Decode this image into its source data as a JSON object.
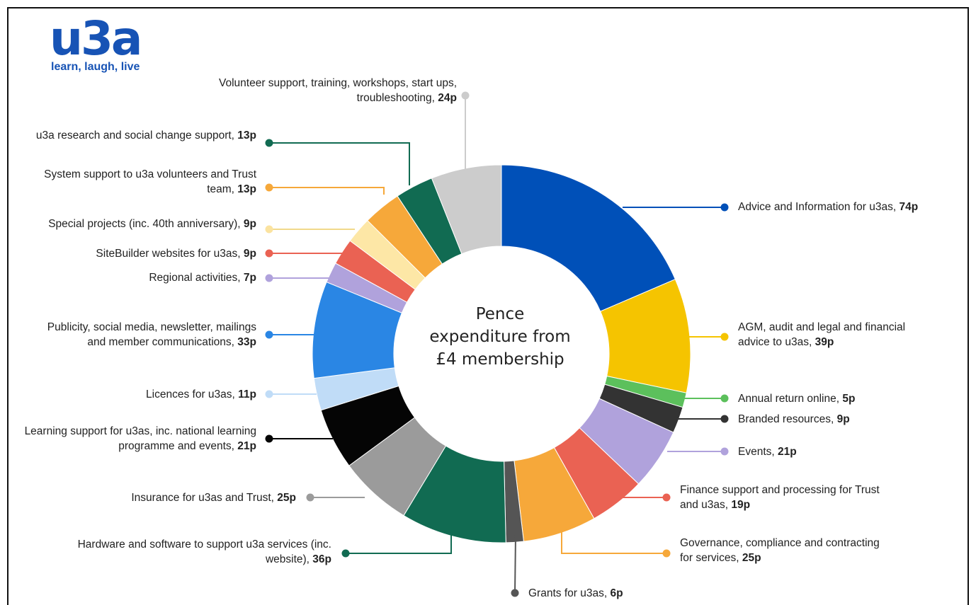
{
  "logo": {
    "word": "u3a",
    "tagline": "learn, laugh, live"
  },
  "chart_data": {
    "type": "pie",
    "donut": true,
    "center_title": "Pence expenditure from £4 membership",
    "unit": "p",
    "slices": [
      {
        "label": "Advice and Information for u3as, ",
        "value": 74,
        "value_text": "74p",
        "color": "#0050b8"
      },
      {
        "label": "AGM, audit and legal and financial advice to u3as, ",
        "value": 39,
        "value_text": "39p",
        "color": "#f5c400"
      },
      {
        "label": "Annual return online, ",
        "value": 5,
        "value_text": "5p",
        "color": "#5cc05c"
      },
      {
        "label": "Branded resources, ",
        "value": 9,
        "value_text": "9p",
        "color": "#333333"
      },
      {
        "label": "Events, ",
        "value": 21,
        "value_text": "21p",
        "color": "#b0a2dc"
      },
      {
        "label": "Finance support and processing for Trust and u3as, ",
        "value": 19,
        "value_text": "19p",
        "color": "#ea6253"
      },
      {
        "label": "Governance, compliance and contracting for services, ",
        "value": 25,
        "value_text": "25p",
        "color": "#f6a83a"
      },
      {
        "label": "Grants for u3as, ",
        "value": 6,
        "value_text": "6p",
        "color": "#555555"
      },
      {
        "label": "Hardware and software to support u3a services (inc. website), ",
        "value": 36,
        "value_text": "36p",
        "color": "#116b52"
      },
      {
        "label": "Insurance for u3as and Trust, ",
        "value": 25,
        "value_text": "25p",
        "color": "#9b9b9b"
      },
      {
        "label": "Learning support for u3as, inc. national learning programme and events, ",
        "value": 21,
        "value_text": "21p",
        "color": "#050505"
      },
      {
        "label": "Licences for u3as, ",
        "value": 11,
        "value_text": "11p",
        "color": "#c0dcf7"
      },
      {
        "label": "Publicity, social media, newsletter, mailings and member communications, ",
        "value": 33,
        "value_text": "33p",
        "color": "#2a86e4"
      },
      {
        "label": "Regional activities, ",
        "value": 7,
        "value_text": "7p",
        "color": "#b0a2dc"
      },
      {
        "label": "SiteBuilder websites for u3as, ",
        "value": 9,
        "value_text": "9p",
        "color": "#ea6253"
      },
      {
        "label": "Special projects (inc. 40th anniversary), ",
        "value": 9,
        "value_text": "9p",
        "color": "#fde7a6"
      },
      {
        "label": "System support to u3a volunteers and Trust team, ",
        "value": 13,
        "value_text": "13p",
        "color": "#f6a83a"
      },
      {
        "label": "u3a research and social change support, ",
        "value": 13,
        "value_text": "13p",
        "color": "#116b52"
      },
      {
        "label": "Volunteer support, training, workshops, start ups, troubleshooting, ",
        "value": 24,
        "value_text": "24p",
        "color": "#cccccc"
      }
    ]
  }
}
